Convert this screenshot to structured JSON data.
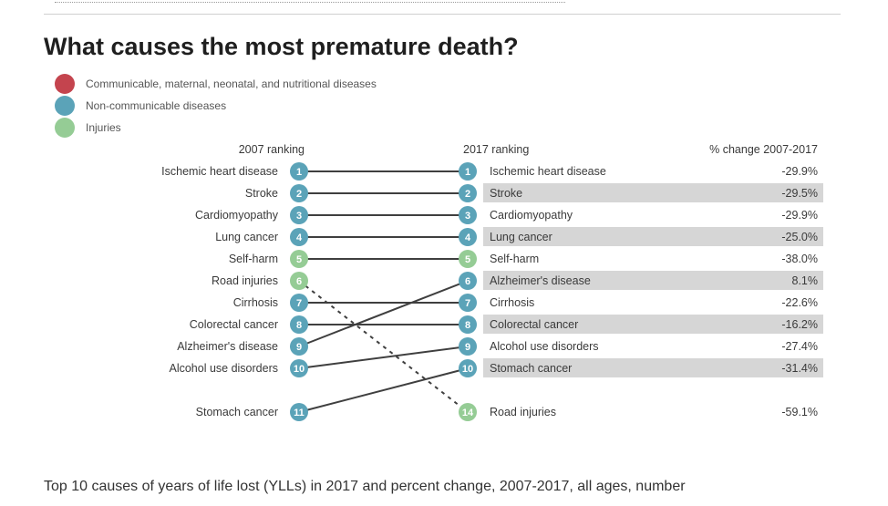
{
  "title": "What causes the most premature death?",
  "caption": "Top 10 causes of years of life lost (YLLs) in 2017 and percent change, 2007-2017, all ages, number",
  "colors": {
    "communicable": "#c4444e",
    "non_communicable": "#5ba3b8",
    "injuries": "#95cc95",
    "line": "#3f3f3f",
    "row_shade": "#d6d6d6"
  },
  "legend": [
    {
      "label": "Communicable, maternal, neonatal, and nutritional diseases",
      "color": "#c4444e"
    },
    {
      "label": "Non-communicable diseases",
      "color": "#5ba3b8"
    },
    {
      "label": "Injuries",
      "color": "#95cc95"
    }
  ],
  "chart_data": {
    "type": "slope",
    "headers": {
      "left": "2007 ranking",
      "right": "2017 ranking",
      "change": "% change 2007-2017"
    },
    "left": [
      {
        "rank": 1,
        "cause": "Ischemic heart disease",
        "group": "non_communicable"
      },
      {
        "rank": 2,
        "cause": "Stroke",
        "group": "non_communicable"
      },
      {
        "rank": 3,
        "cause": "Cardiomyopathy",
        "group": "non_communicable"
      },
      {
        "rank": 4,
        "cause": "Lung cancer",
        "group": "non_communicable"
      },
      {
        "rank": 5,
        "cause": "Self-harm",
        "group": "injuries"
      },
      {
        "rank": 6,
        "cause": "Road injuries",
        "group": "injuries"
      },
      {
        "rank": 7,
        "cause": "Cirrhosis",
        "group": "non_communicable"
      },
      {
        "rank": 8,
        "cause": "Colorectal cancer",
        "group": "non_communicable"
      },
      {
        "rank": 9,
        "cause": "Alzheimer's disease",
        "group": "non_communicable"
      },
      {
        "rank": 10,
        "cause": "Alcohol use disorders",
        "group": "non_communicable"
      },
      {
        "rank": 11,
        "cause": "Stomach cancer",
        "group": "non_communicable"
      }
    ],
    "right": [
      {
        "rank": 1,
        "cause": "Ischemic heart disease",
        "group": "non_communicable",
        "change": "-29.9%",
        "shaded": false
      },
      {
        "rank": 2,
        "cause": "Stroke",
        "group": "non_communicable",
        "change": "-29.5%",
        "shaded": true
      },
      {
        "rank": 3,
        "cause": "Cardiomyopathy",
        "group": "non_communicable",
        "change": "-29.9%",
        "shaded": false
      },
      {
        "rank": 4,
        "cause": "Lung cancer",
        "group": "non_communicable",
        "change": "-25.0%",
        "shaded": true
      },
      {
        "rank": 5,
        "cause": "Self-harm",
        "group": "injuries",
        "change": "-38.0%",
        "shaded": false
      },
      {
        "rank": 6,
        "cause": "Alzheimer's disease",
        "group": "non_communicable",
        "change": "8.1%",
        "shaded": true
      },
      {
        "rank": 7,
        "cause": "Cirrhosis",
        "group": "non_communicable",
        "change": "-22.6%",
        "shaded": false
      },
      {
        "rank": 8,
        "cause": "Colorectal cancer",
        "group": "non_communicable",
        "change": "-16.2%",
        "shaded": true
      },
      {
        "rank": 9,
        "cause": "Alcohol use disorders",
        "group": "non_communicable",
        "change": "-27.4%",
        "shaded": false
      },
      {
        "rank": 10,
        "cause": "Stomach cancer",
        "group": "non_communicable",
        "change": "-31.4%",
        "shaded": true
      },
      {
        "rank": 14,
        "cause": "Road injuries",
        "group": "injuries",
        "change": "-59.1%",
        "shaded": false
      }
    ],
    "links": [
      {
        "from": 1,
        "to": 1,
        "style": "solid"
      },
      {
        "from": 2,
        "to": 2,
        "style": "solid"
      },
      {
        "from": 3,
        "to": 3,
        "style": "solid"
      },
      {
        "from": 4,
        "to": 4,
        "style": "solid"
      },
      {
        "from": 5,
        "to": 5,
        "style": "solid"
      },
      {
        "from": 6,
        "to": 14,
        "style": "dashed"
      },
      {
        "from": 7,
        "to": 7,
        "style": "solid"
      },
      {
        "from": 8,
        "to": 8,
        "style": "solid"
      },
      {
        "from": 9,
        "to": 6,
        "style": "solid"
      },
      {
        "from": 10,
        "to": 9,
        "style": "solid"
      },
      {
        "from": 11,
        "to": 10,
        "style": "solid"
      }
    ]
  }
}
